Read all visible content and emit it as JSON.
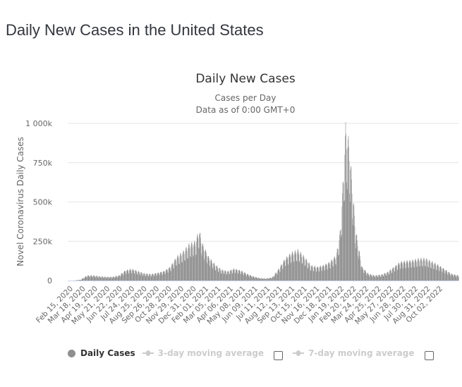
{
  "page": {
    "heading": "Daily New Cases in the United States"
  },
  "legend": {
    "items": [
      {
        "label": "Daily Cases",
        "active": true
      },
      {
        "label": "3-day moving average",
        "active": false
      },
      {
        "label": "7-day moving average",
        "active": false
      }
    ]
  },
  "colors": {
    "bar": "#8f8f8f",
    "grid": "#e6e6e6",
    "axis": "#ccd6eb",
    "title": "#333333",
    "subtitle": "#666666",
    "tick": "#666666",
    "legend_inactive": "#cccccc"
  },
  "chart_data": {
    "type": "bar",
    "title": "Daily New Cases",
    "subtitle_lines": [
      "Cases per Day",
      "Data as of 0:00 GMT+0"
    ],
    "xlabel": "",
    "ylabel": "Novel Coronavirus Daily Cases",
    "ylim": [
      0,
      1000000
    ],
    "y_ticks": [
      0,
      250000,
      500000,
      750000,
      1000000
    ],
    "y_tick_labels": [
      "0",
      "250k",
      "500k",
      "750k",
      "1 000k"
    ],
    "grid": true,
    "legend_position": "bottom",
    "x_tick_labels": [
      "Feb 15, 2020",
      "Mar 18, 2020",
      "Apr 19, 2020",
      "May 21, 2020",
      "Jun 22, 2020",
      "Jul 24, 2020",
      "Aug 25, 2020",
      "Sep 26, 2020",
      "Oct 28, 2020",
      "Nov 29, 2020",
      "Dec 31, 2020",
      "Feb 01, 2021",
      "Mar 05, 2021",
      "Apr 06, 2021",
      "May 08, 2021",
      "Jun 09, 2021",
      "Jul 11, 2021",
      "Aug 12, 2021",
      "Sep 13, 2021",
      "Oct 15, 2021",
      "Nov 16, 2021",
      "Dec 18, 2021",
      "Jan 19, 2022",
      "Feb 20, 2022",
      "Mar 24, 2022",
      "Apr 25, 2022",
      "May 27, 2022",
      "Jun 28, 2022",
      "Jul 30, 2022",
      "Aug 31, 2022",
      "Oct 02, 2022"
    ],
    "series": [
      {
        "name": "Daily Cases",
        "x": [
          "2020-02-15",
          "2020-03-01",
          "2020-03-18",
          "2020-04-03",
          "2020-04-19",
          "2020-05-05",
          "2020-05-21",
          "2020-06-06",
          "2020-06-22",
          "2020-07-08",
          "2020-07-24",
          "2020-08-09",
          "2020-08-25",
          "2020-09-10",
          "2020-09-26",
          "2020-10-12",
          "2020-10-28",
          "2020-11-13",
          "2020-11-29",
          "2020-12-15",
          "2020-12-31",
          "2021-01-08",
          "2021-01-16",
          "2021-02-01",
          "2021-02-17",
          "2021-03-05",
          "2021-03-21",
          "2021-04-06",
          "2021-04-22",
          "2021-05-08",
          "2021-05-24",
          "2021-06-09",
          "2021-06-25",
          "2021-07-11",
          "2021-07-27",
          "2021-08-12",
          "2021-08-28",
          "2021-09-13",
          "2021-09-29",
          "2021-10-15",
          "2021-10-31",
          "2021-11-16",
          "2021-12-02",
          "2021-12-18",
          "2021-12-28",
          "2022-01-04",
          "2022-01-10",
          "2022-01-19",
          "2022-01-27",
          "2022-02-04",
          "2022-02-20",
          "2022-03-08",
          "2022-03-24",
          "2022-04-09",
          "2022-04-25",
          "2022-05-11",
          "2022-05-27",
          "2022-06-12",
          "2022-06-28",
          "2022-07-14",
          "2022-07-30",
          "2022-08-15",
          "2022-08-31",
          "2022-09-16",
          "2022-10-02",
          "2022-10-20"
        ],
        "values": [
          0,
          100,
          5000,
          30000,
          30000,
          25000,
          22000,
          22000,
          30000,
          60000,
          68000,
          55000,
          42000,
          38000,
          45000,
          55000,
          80000,
          140000,
          170000,
          215000,
          230000,
          300000,
          220000,
          140000,
          95000,
          65000,
          55000,
          70000,
          60000,
          40000,
          25000,
          15000,
          12000,
          20000,
          70000,
          130000,
          165000,
          180000,
          140000,
          90000,
          80000,
          90000,
          110000,
          150000,
          300000,
          600000,
          900000,
          800000,
          550000,
          300000,
          80000,
          40000,
          30000,
          35000,
          50000,
          80000,
          110000,
          115000,
          120000,
          130000,
          130000,
          110000,
          90000,
          65000,
          40000,
          30000
        ]
      }
    ]
  }
}
